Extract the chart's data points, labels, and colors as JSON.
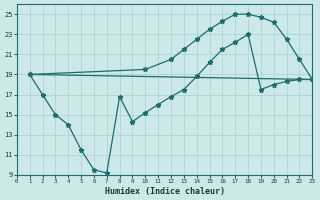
{
  "xlabel": "Humidex (Indice chaleur)",
  "bg_color": "#cce8e8",
  "grid_color": "#b0d8d8",
  "line_color": "#1a6e6e",
  "line1_x": [
    1,
    2,
    3,
    4,
    5,
    6,
    7,
    8,
    9,
    10,
    11,
    12,
    13,
    14,
    15,
    16,
    17,
    18,
    19,
    20,
    21,
    22,
    23
  ],
  "line1_y": [
    19.0,
    17.0,
    15.0,
    14.0,
    11.5,
    9.5,
    9.2,
    16.8,
    14.3,
    15.2,
    16.0,
    16.8,
    17.5,
    18.8,
    20.2,
    21.5,
    22.2,
    23.0,
    17.5,
    18.0,
    18.3,
    18.5,
    18.5
  ],
  "line2_x": [
    1,
    23
  ],
  "line2_y": [
    19.0,
    18.5
  ],
  "line3_x": [
    1,
    10,
    12,
    13,
    14,
    15,
    16,
    17,
    18,
    19,
    20,
    21,
    22,
    23
  ],
  "line3_y": [
    19.0,
    19.5,
    20.5,
    21.5,
    22.5,
    23.5,
    24.3,
    25.0,
    25.0,
    24.7,
    24.2,
    22.5,
    20.5,
    18.5
  ],
  "xlim": [
    0,
    23
  ],
  "ylim": [
    9,
    26
  ],
  "yticks": [
    9,
    11,
    13,
    15,
    17,
    19,
    21,
    23,
    25
  ],
  "xticks": [
    0,
    1,
    2,
    3,
    4,
    5,
    6,
    7,
    8,
    9,
    10,
    11,
    12,
    13,
    14,
    15,
    16,
    17,
    18,
    19,
    20,
    21,
    22,
    23
  ]
}
